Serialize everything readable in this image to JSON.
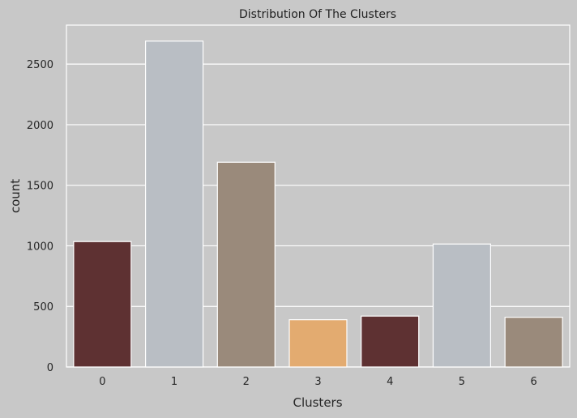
{
  "chart_data": {
    "type": "bar",
    "title": "Distribution Of The Clusters",
    "xlabel": "Clusters",
    "ylabel": "count",
    "categories": [
      "0",
      "1",
      "2",
      "3",
      "4",
      "5",
      "6"
    ],
    "values": [
      1035,
      2690,
      1690,
      390,
      420,
      1015,
      410
    ],
    "colors": [
      "#5e3132",
      "#b9bec4",
      "#9a8a7b",
      "#e3ab70",
      "#5e3132",
      "#b9bec4",
      "#9a8a7b"
    ],
    "yticks": [
      0,
      500,
      1000,
      1500,
      2000,
      2500
    ],
    "ylim": [
      0,
      2822
    ],
    "grid": true,
    "background": "#c8c8c8",
    "edge_color": "#ffffff"
  }
}
